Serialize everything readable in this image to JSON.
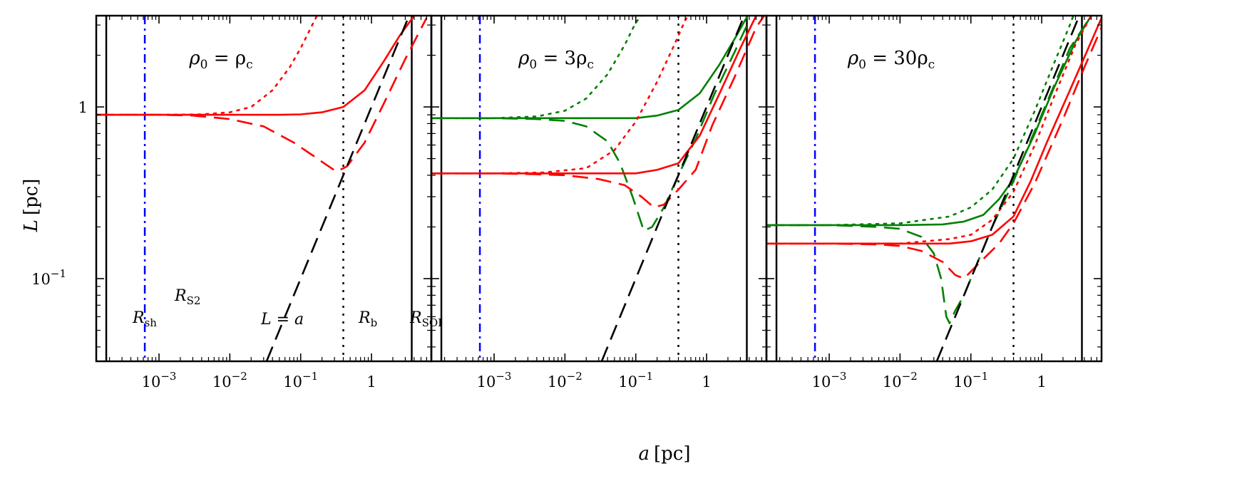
{
  "figure": {
    "xlabel_var": "a",
    "xlabel_unit": "[pc]",
    "ylabel_var": "L",
    "ylabel_unit": "[pc]"
  },
  "chart_data": {
    "type": "line",
    "scale": "log-log",
    "xlim": [
      0.00013,
      7.0
    ],
    "ylim": [
      0.033,
      3.4
    ],
    "x_ticks": [
      {
        "value": 0.001,
        "label": "10",
        "exp": "−3"
      },
      {
        "value": 0.01,
        "label": "10",
        "exp": "−2"
      },
      {
        "value": 0.1,
        "label": "10",
        "exp": "−1"
      },
      {
        "value": 1,
        "label": "1",
        "exp": ""
      }
    ],
    "y_ticks": [
      {
        "value": 0.1,
        "label": "10",
        "exp": "−1"
      },
      {
        "value": 1,
        "label": "1",
        "exp": ""
      }
    ],
    "line_colors": {
      "red": "#ff0000",
      "green": "#008000",
      "black": "#000000",
      "blue": "#0000ff"
    },
    "vlines": {
      "R_sh": 0.00018,
      "R_S2": 0.00063,
      "R_b": 0.4,
      "R_SOI": 3.7
    },
    "annotations": {
      "R_sh": {
        "main": "R",
        "sub": "sh"
      },
      "R_S2": {
        "main": "R",
        "sub": "S2"
      },
      "R_b": {
        "main": "R",
        "sub": "b"
      },
      "R_SOI": {
        "main": "R",
        "sub": "SOI"
      },
      "L_eq_a": "L = a"
    },
    "panels": [
      {
        "title_main": "ρ",
        "title_sub": "0",
        "title_rest": " = ρ",
        "title_rest_sub": "c",
        "title_factor": "",
        "series": [
          {
            "color": "red",
            "style": "solid",
            "points": [
              [
                0.00013,
                0.9
              ],
              [
                0.001,
                0.9
              ],
              [
                0.01,
                0.9
              ],
              [
                0.05,
                0.9
              ],
              [
                0.1,
                0.905
              ],
              [
                0.2,
                0.93
              ],
              [
                0.4,
                1.0
              ],
              [
                0.8,
                1.25
              ],
              [
                1.5,
                1.85
              ],
              [
                2.5,
                2.6
              ],
              [
                4,
                3.4
              ]
            ]
          },
          {
            "color": "red",
            "style": "dashed",
            "points": [
              [
                0.00013,
                0.9
              ],
              [
                0.001,
                0.9
              ],
              [
                0.003,
                0.89
              ],
              [
                0.01,
                0.85
              ],
              [
                0.03,
                0.77
              ],
              [
                0.08,
                0.62
              ],
              [
                0.15,
                0.52
              ],
              [
                0.25,
                0.45
              ],
              [
                0.32,
                0.42
              ],
              [
                0.45,
                0.45
              ],
              [
                0.8,
                0.62
              ],
              [
                1.5,
                1.05
              ],
              [
                3,
                1.9
              ],
              [
                6,
                3.3
              ]
            ]
          },
          {
            "color": "red",
            "style": "dotted",
            "points": [
              [
                0.00013,
                0.9
              ],
              [
                0.001,
                0.9
              ],
              [
                0.004,
                0.905
              ],
              [
                0.01,
                0.93
              ],
              [
                0.02,
                1.0
              ],
              [
                0.04,
                1.25
              ],
              [
                0.07,
                1.7
              ],
              [
                0.1,
                2.2
              ],
              [
                0.14,
                2.9
              ],
              [
                0.17,
                3.4
              ]
            ]
          },
          {
            "color": "black",
            "style": "dashed",
            "points": [
              [
                0.033,
                0.033
              ],
              [
                3.4,
                3.4
              ]
            ]
          }
        ]
      },
      {
        "title_main": "ρ",
        "title_sub": "0",
        "title_rest": " = 3ρ",
        "title_rest_sub": "c",
        "title_factor": "",
        "series": [
          {
            "color": "green",
            "style": "solid",
            "points": [
              [
                0.00013,
                0.86
              ],
              [
                0.001,
                0.86
              ],
              [
                0.01,
                0.86
              ],
              [
                0.05,
                0.86
              ],
              [
                0.1,
                0.86
              ],
              [
                0.2,
                0.89
              ],
              [
                0.4,
                0.96
              ],
              [
                0.8,
                1.2
              ],
              [
                1.5,
                1.75
              ],
              [
                2.5,
                2.5
              ],
              [
                3.8,
                3.4
              ]
            ]
          },
          {
            "color": "green",
            "style": "dashed",
            "points": [
              [
                0.00013,
                0.86
              ],
              [
                0.001,
                0.86
              ],
              [
                0.004,
                0.85
              ],
              [
                0.01,
                0.83
              ],
              [
                0.02,
                0.77
              ],
              [
                0.04,
                0.63
              ],
              [
                0.06,
                0.47
              ],
              [
                0.09,
                0.3
              ],
              [
                0.13,
                0.19
              ],
              [
                0.17,
                0.2
              ],
              [
                0.25,
                0.26
              ],
              [
                0.4,
                0.4
              ],
              [
                0.7,
                0.65
              ],
              [
                1.3,
                1.2
              ],
              [
                2.5,
                2.1
              ],
              [
                4,
                3.2
              ]
            ]
          },
          {
            "color": "green",
            "style": "dotted",
            "points": [
              [
                0.00013,
                0.86
              ],
              [
                0.001,
                0.86
              ],
              [
                0.004,
                0.88
              ],
              [
                0.01,
                0.95
              ],
              [
                0.02,
                1.12
              ],
              [
                0.04,
                1.55
              ],
              [
                0.07,
                2.3
              ],
              [
                0.1,
                3.1
              ],
              [
                0.12,
                3.4
              ]
            ]
          },
          {
            "color": "red",
            "style": "solid",
            "points": [
              [
                0.00013,
                0.41
              ],
              [
                0.001,
                0.41
              ],
              [
                0.01,
                0.41
              ],
              [
                0.05,
                0.41
              ],
              [
                0.1,
                0.41
              ],
              [
                0.2,
                0.43
              ],
              [
                0.4,
                0.47
              ],
              [
                0.8,
                0.68
              ],
              [
                1.5,
                1.18
              ],
              [
                3,
                2.2
              ],
              [
                5,
                3.4
              ]
            ]
          },
          {
            "color": "red",
            "style": "dashed",
            "points": [
              [
                0.00013,
                0.41
              ],
              [
                0.001,
                0.41
              ],
              [
                0.004,
                0.405
              ],
              [
                0.01,
                0.4
              ],
              [
                0.03,
                0.38
              ],
              [
                0.07,
                0.35
              ],
              [
                0.12,
                0.3
              ],
              [
                0.18,
                0.26
              ],
              [
                0.25,
                0.27
              ],
              [
                0.4,
                0.33
              ],
              [
                0.7,
                0.43
              ],
              [
                1.2,
                0.78
              ],
              [
                2.5,
                1.5
              ],
              [
                5,
                2.9
              ],
              [
                6.5,
                3.4
              ]
            ]
          },
          {
            "color": "red",
            "style": "dotted",
            "points": [
              [
                0.00013,
                0.41
              ],
              [
                0.001,
                0.41
              ],
              [
                0.005,
                0.415
              ],
              [
                0.02,
                0.44
              ],
              [
                0.05,
                0.56
              ],
              [
                0.1,
                0.82
              ],
              [
                0.2,
                1.4
              ],
              [
                0.35,
                2.3
              ],
              [
                0.5,
                3.2
              ],
              [
                0.55,
                3.4
              ]
            ]
          },
          {
            "color": "black",
            "style": "dashed",
            "points": [
              [
                0.033,
                0.033
              ],
              [
                3.4,
                3.4
              ]
            ]
          }
        ]
      },
      {
        "title_main": "ρ",
        "title_sub": "0",
        "title_rest": " = 30ρ",
        "title_rest_sub": "c",
        "title_factor": "",
        "series": [
          {
            "color": "green",
            "style": "solid",
            "points": [
              [
                0.00013,
                0.205
              ],
              [
                0.001,
                0.205
              ],
              [
                0.01,
                0.205
              ],
              [
                0.04,
                0.207
              ],
              [
                0.08,
                0.215
              ],
              [
                0.15,
                0.235
              ],
              [
                0.25,
                0.29
              ],
              [
                0.4,
                0.38
              ],
              [
                0.8,
                0.7
              ],
              [
                1.5,
                1.3
              ],
              [
                3,
                2.4
              ],
              [
                5,
                3.4
              ]
            ]
          },
          {
            "color": "green",
            "style": "dashed",
            "points": [
              [
                0.00013,
                0.205
              ],
              [
                0.001,
                0.205
              ],
              [
                0.005,
                0.2
              ],
              [
                0.01,
                0.195
              ],
              [
                0.02,
                0.175
              ],
              [
                0.03,
                0.14
              ],
              [
                0.038,
                0.1
              ],
              [
                0.045,
                0.06
              ],
              [
                0.05,
                0.055
              ],
              [
                0.06,
                0.065
              ],
              [
                0.08,
                0.08
              ],
              [
                0.12,
                0.12
              ],
              [
                0.2,
                0.2
              ],
              [
                0.4,
                0.37
              ],
              [
                1,
                0.9
              ],
              [
                2.5,
                2.2
              ],
              [
                5,
                3.4
              ]
            ]
          },
          {
            "color": "green",
            "style": "dotted",
            "points": [
              [
                0.00013,
                0.205
              ],
              [
                0.001,
                0.205
              ],
              [
                0.01,
                0.21
              ],
              [
                0.05,
                0.23
              ],
              [
                0.1,
                0.26
              ],
              [
                0.2,
                0.33
              ],
              [
                0.4,
                0.5
              ],
              [
                0.8,
                0.95
              ],
              [
                1.5,
                1.8
              ],
              [
                2.5,
                3.0
              ],
              [
                2.8,
                3.4
              ]
            ]
          },
          {
            "color": "red",
            "style": "solid",
            "points": [
              [
                0.00013,
                0.16
              ],
              [
                0.001,
                0.16
              ],
              [
                0.01,
                0.16
              ],
              [
                0.05,
                0.16
              ],
              [
                0.1,
                0.165
              ],
              [
                0.2,
                0.18
              ],
              [
                0.4,
                0.23
              ],
              [
                0.7,
                0.37
              ],
              [
                1.2,
                0.63
              ],
              [
                2.5,
                1.25
              ],
              [
                5,
                2.4
              ],
              [
                7,
                3.3
              ]
            ]
          },
          {
            "color": "red",
            "style": "dashed",
            "points": [
              [
                0.00013,
                0.16
              ],
              [
                0.001,
                0.16
              ],
              [
                0.005,
                0.158
              ],
              [
                0.01,
                0.155
              ],
              [
                0.02,
                0.145
              ],
              [
                0.04,
                0.125
              ],
              [
                0.06,
                0.105
              ],
              [
                0.08,
                0.1
              ],
              [
                0.1,
                0.11
              ],
              [
                0.15,
                0.13
              ],
              [
                0.25,
                0.16
              ],
              [
                0.4,
                0.21
              ],
              [
                0.8,
                0.36
              ],
              [
                2,
                0.85
              ],
              [
                4,
                1.7
              ],
              [
                7,
                2.9
              ]
            ]
          },
          {
            "color": "red",
            "style": "dotted",
            "points": [
              [
                0.00013,
                0.16
              ],
              [
                0.001,
                0.16
              ],
              [
                0.01,
                0.16
              ],
              [
                0.05,
                0.17
              ],
              [
                0.1,
                0.18
              ],
              [
                0.2,
                0.22
              ],
              [
                0.4,
                0.32
              ],
              [
                0.8,
                0.6
              ],
              [
                1.5,
                1.15
              ],
              [
                3,
                2.3
              ],
              [
                5,
                3.4
              ]
            ]
          },
          {
            "color": "black",
            "style": "dashed",
            "points": [
              [
                0.033,
                0.033
              ],
              [
                3.4,
                3.4
              ]
            ]
          }
        ]
      }
    ]
  }
}
